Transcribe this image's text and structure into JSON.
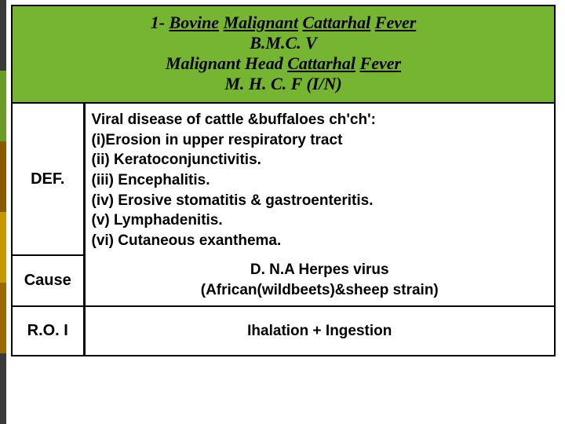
{
  "accent_colors": [
    "#3a3a3a",
    "#6a9a28",
    "#8a5a00",
    "#c49a00",
    "#9a6a00",
    "#3a3a3a"
  ],
  "title": {
    "line1_prefix": "1- ",
    "line1_words": [
      "Bovine",
      "Malignant",
      "Cattarhal",
      "Fever"
    ],
    "line2": "B.M.C. V",
    "line3_words": [
      "Malignant",
      "Head",
      "Cattarhal",
      "Fever"
    ],
    "line4": "M. H. C. F     (I/N)",
    "bg_color": "#76b531"
  },
  "rows": {
    "def": {
      "label": "DEF.",
      "lines": [
        "Viral disease of cattle &buffaloes ch'ch':",
        "(i)Erosion in upper respiratory tract",
        "(ii) Keratoconjunctivitis.",
        "(iii) Encephalitis.",
        "(iv) Erosive stomatitis & gastroenteritis.",
        "(v) Lymphadenitis.",
        "(vi) Cutaneous exanthema."
      ]
    },
    "cause": {
      "label": "Cause",
      "line1": "D. N.A Herpes virus",
      "line2": "(African(wildbeets)&sheep strain)"
    },
    "roi": {
      "label": "R.O. I",
      "text": "Ihalation + Ingestion"
    }
  }
}
